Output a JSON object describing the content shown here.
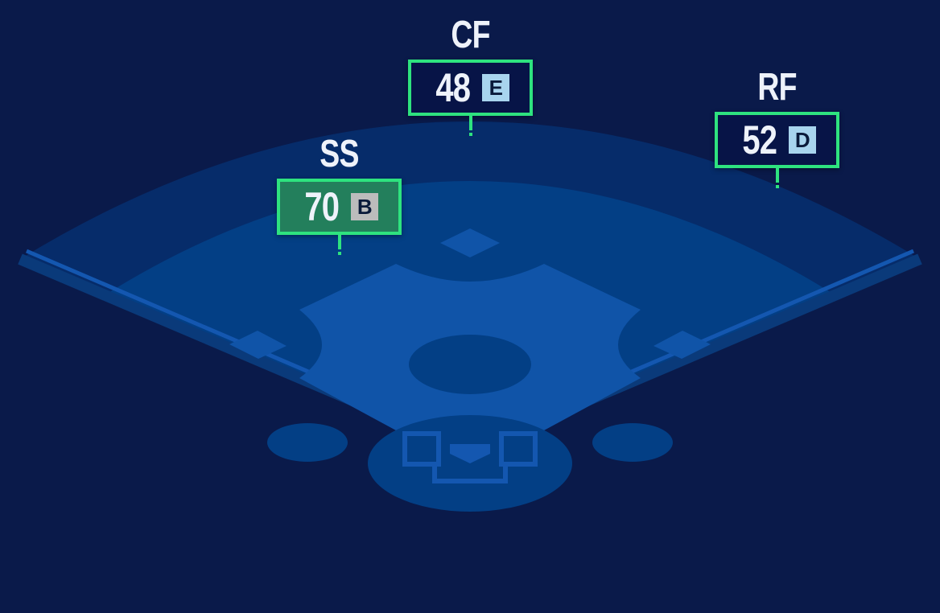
{
  "colors": {
    "background": "#0a1a4a",
    "outfield": "#062c6a",
    "grass": "#033f85",
    "dirt": "#1054a8",
    "accent": "#2ee37f",
    "good_box": "#237f5c",
    "neutral_box": "#071447"
  },
  "positions": [
    {
      "label": "CF",
      "rating": "48",
      "grade": "E",
      "grade_color": "#a8d4ee",
      "highlight": false
    },
    {
      "label": "SS",
      "rating": "70",
      "grade": "B",
      "grade_color": "#bcbcbc",
      "highlight": true
    },
    {
      "label": "RF",
      "rating": "52",
      "grade": "D",
      "grade_color": "#a8d4ee",
      "highlight": false
    }
  ]
}
